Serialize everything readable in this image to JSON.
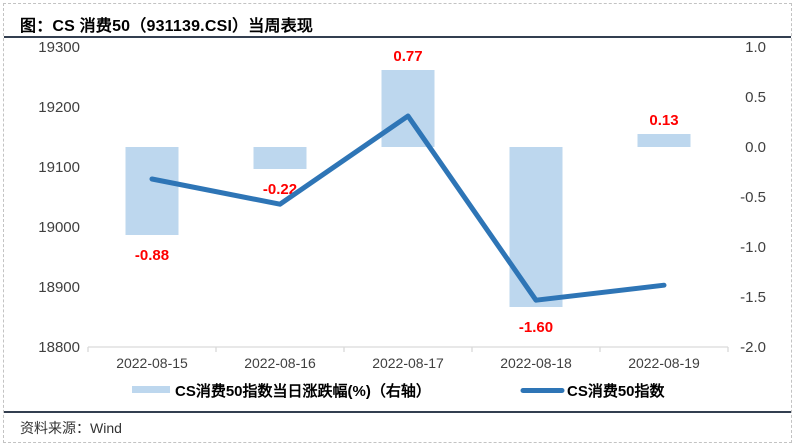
{
  "header": {
    "title": "图：CS 消费50（931139.CSI）当周表现"
  },
  "footer": {
    "source": "资料来源：Wind"
  },
  "chart_data": {
    "type": "combo_bar_line",
    "title": "图：CS 消费50（931139.CSI）当周表现",
    "categories": [
      "2022-08-15",
      "2022-08-16",
      "2022-08-17",
      "2022-08-18",
      "2022-08-19"
    ],
    "series": [
      {
        "name": "CS消费50指数当日涨跌幅(%)（右轴）",
        "type": "bar",
        "axis": "right",
        "values": [
          -0.88,
          -0.22,
          0.77,
          -1.6,
          0.13
        ],
        "data_labels": [
          "-0.88",
          "-0.22",
          "0.77",
          "-1.60",
          "0.13"
        ],
        "color": "#BDD7EE",
        "label_color": "#FF0000"
      },
      {
        "name": "CS消费50指数",
        "type": "line",
        "axis": "left",
        "values": [
          19080,
          19038,
          19185,
          18878,
          18903
        ],
        "color": "#2E75B6"
      }
    ],
    "left_axis": {
      "min": 18800,
      "max": 19300,
      "step": 100,
      "ticks": [
        "19300",
        "19200",
        "19100",
        "19000",
        "18900",
        "18800"
      ]
    },
    "right_axis": {
      "min": -2.0,
      "max": 1.0,
      "step": 0.5,
      "ticks": [
        "1.0",
        "0.5",
        "0.0",
        "-0.5",
        "-1.0",
        "-1.5",
        "-2.0"
      ]
    },
    "grid": false,
    "legend_position": "bottom"
  },
  "colors": {
    "bar_fill": "#BDD7EE",
    "line_stroke": "#2E75B6",
    "data_label": "#FF0000",
    "axis_line": "#D9D9D9",
    "axis_text": "#404040",
    "separator": "#333F50",
    "frame_border": "#C3C3C3"
  }
}
